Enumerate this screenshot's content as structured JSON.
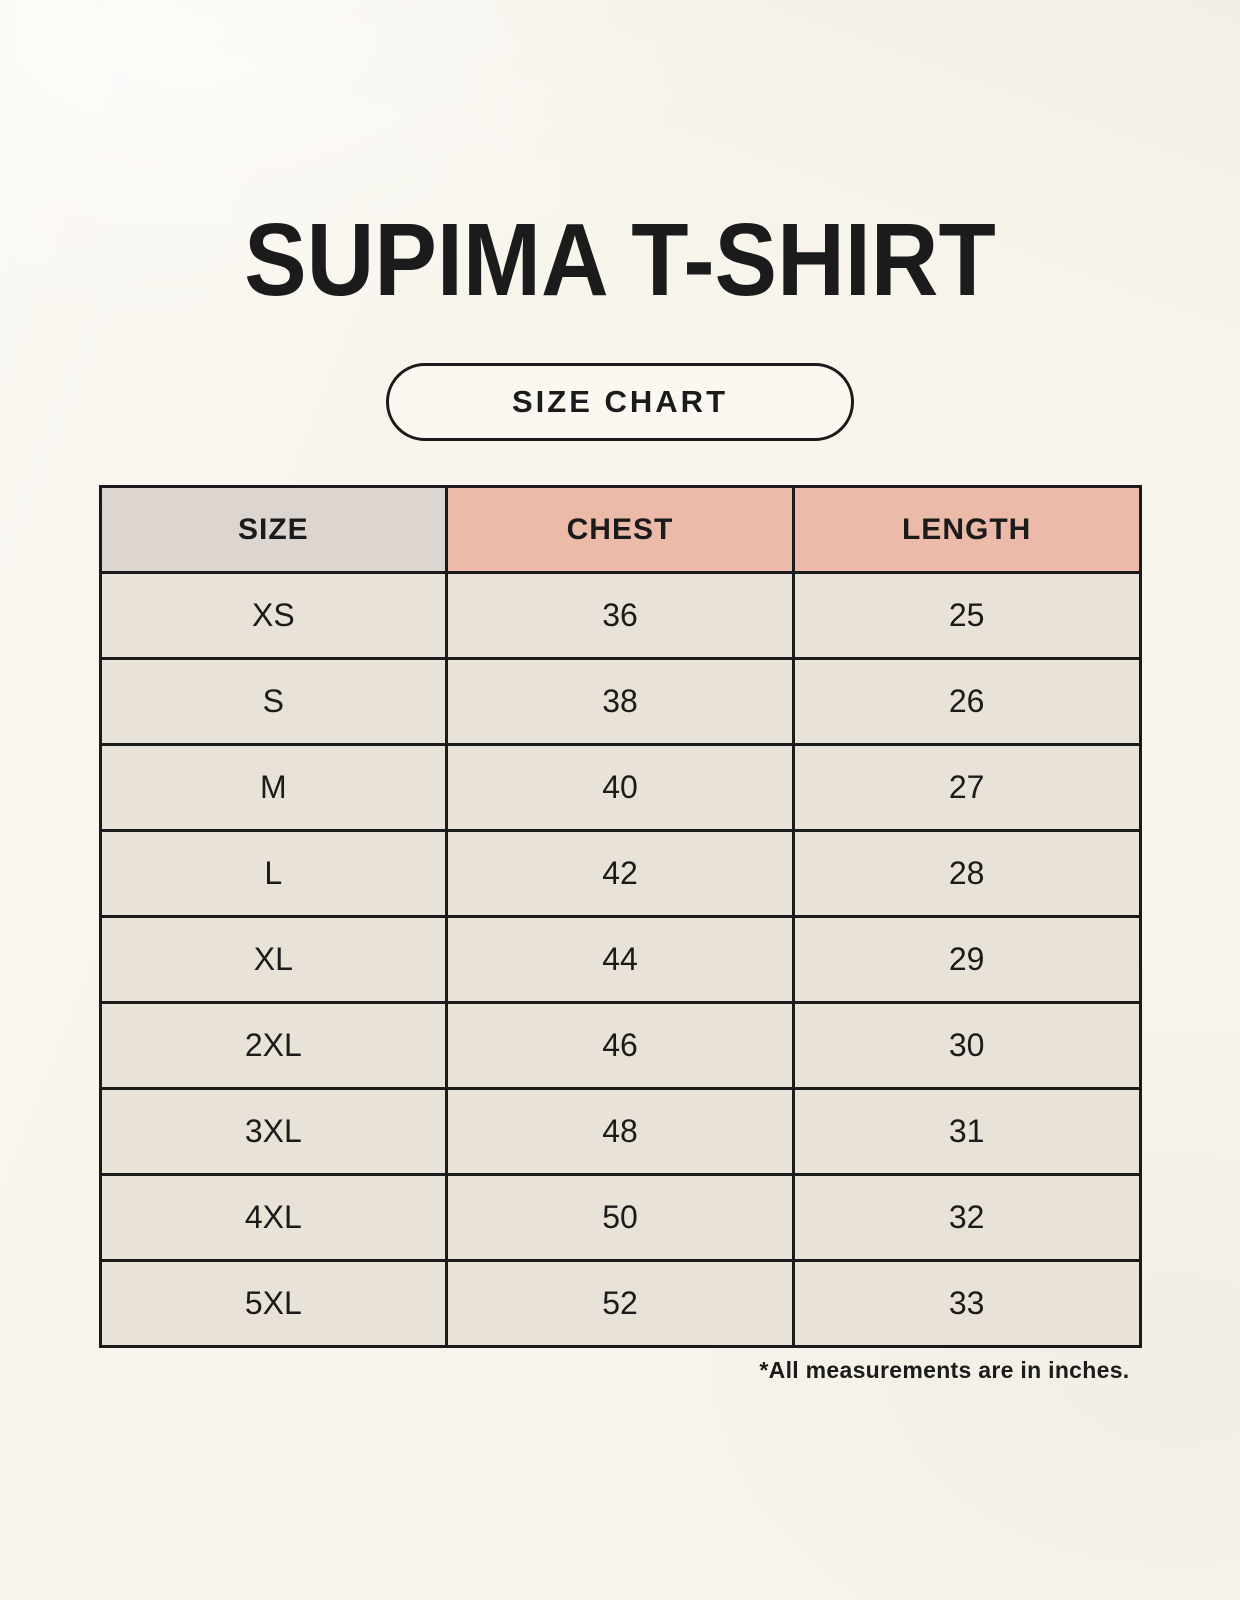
{
  "page": {
    "title": "SUPIMA T-SHIRT",
    "size_chart_badge": "SIZE CHART",
    "footnote": "*All measurements are in inches."
  },
  "table": {
    "headers": [
      "SIZE",
      "CHEST",
      "LENGTH"
    ],
    "rows": [
      [
        "XS",
        "36",
        "25"
      ],
      [
        "S",
        "38",
        "26"
      ],
      [
        "M",
        "40",
        "27"
      ],
      [
        "L",
        "42",
        "28"
      ],
      [
        "XL",
        "44",
        "29"
      ],
      [
        "2XL",
        "46",
        "30"
      ],
      [
        "3XL",
        "48",
        "31"
      ],
      [
        "4XL",
        "50",
        "32"
      ],
      [
        "5XL",
        "52",
        "33"
      ]
    ]
  },
  "units_note": "inches",
  "colors": {
    "header-pink": "#ecbaa8",
    "size-column-gray": "#dcd5d0",
    "cell-beige": "#e9e2d8",
    "page-cream": "#f8f5ed",
    "table-border": "#1a1a1a",
    "text": "#1b1b1b"
  }
}
